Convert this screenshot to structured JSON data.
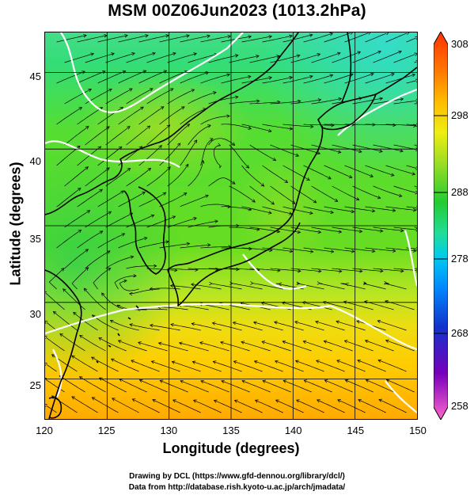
{
  "title": "MSM 00Z06Jun2023 (1013.2hPa)",
  "map": {
    "x_axis": {
      "label": "Longitude (degrees)",
      "min": 120,
      "max": 150,
      "ticks": [
        "120",
        "125",
        "130",
        "135",
        "140",
        "145",
        "150"
      ]
    },
    "y_axis": {
      "label": "Latitude  (degrees)",
      "min": 22.4,
      "max": 47.6,
      "ticks": [
        "45",
        "40",
        "35",
        "30",
        "25"
      ]
    },
    "field": "temperature (K) with streamlines and coastlines",
    "colors": {
      "coast": "#000000",
      "contour": "#ffffff",
      "grid": "#000000"
    }
  },
  "colorbar": {
    "min": 258,
    "max": 308,
    "ticks": [
      "308",
      "298",
      "288",
      "278",
      "268",
      "258"
    ],
    "stops": [
      "#ff44aa",
      "#aa00cc",
      "#2222cc",
      "#0066ff",
      "#00aaee",
      "#00ddcc",
      "#22cc44",
      "#66dd22",
      "#ccee22",
      "#ffdd00",
      "#ff9900",
      "#ff3300"
    ]
  },
  "credits": {
    "line1": "Drawing by DCL (https://www.gfd-dennou.org/library/dcl/)",
    "line2": "Data from http://database.rish.kyoto-u.ac.jp/arch/jmadata/"
  }
}
